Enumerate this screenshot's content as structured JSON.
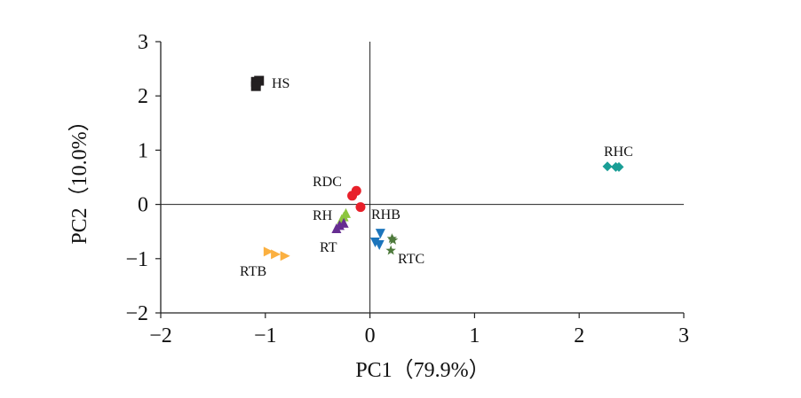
{
  "chart_data": {
    "type": "scatter",
    "title": "",
    "xlabel": "PC1（79.9%）",
    "ylabel": "PC2（10.0%）",
    "xlim": [
      -2,
      3
    ],
    "ylim": [
      -2,
      3
    ],
    "xticks": [
      "−2",
      "−1",
      "0",
      "1",
      "2",
      "3"
    ],
    "yticks": [
      "−2",
      "−1",
      "0",
      "1",
      "2",
      "3"
    ],
    "grid": false,
    "series": [
      {
        "name": "HS",
        "marker": "square",
        "color": "#231f20",
        "x": [
          -1.09,
          -1.06,
          -1.09
        ],
        "y": [
          2.26,
          2.28,
          2.18
        ]
      },
      {
        "name": "RDC",
        "marker": "circle",
        "color": "#e8202a",
        "x": [
          -0.17,
          -0.13,
          -0.09
        ],
        "y": [
          0.16,
          0.25,
          -0.05
        ]
      },
      {
        "name": "RH",
        "marker": "triangle-up",
        "color": "#8dc63f",
        "x": [
          -0.23,
          -0.25,
          -0.27
        ],
        "y": [
          -0.16,
          -0.22,
          -0.27
        ]
      },
      {
        "name": "RT",
        "marker": "triangle-purple",
        "color": "#662d91",
        "x": [
          -0.32,
          -0.29,
          -0.25
        ],
        "y": [
          -0.44,
          -0.38,
          -0.34
        ]
      },
      {
        "name": "RTB",
        "marker": "triangle-right",
        "color": "#fbb040",
        "x": [
          -0.97,
          -0.9,
          -0.81
        ],
        "y": [
          -0.87,
          -0.92,
          -0.95
        ]
      },
      {
        "name": "RHB",
        "marker": "triangle-down",
        "color": "#1c75bc",
        "x": [
          0.1,
          0.05,
          0.09
        ],
        "y": [
          -0.54,
          -0.7,
          -0.75
        ]
      },
      {
        "name": "RTC",
        "marker": "star",
        "color": "#4e7a3c",
        "x": [
          0.21,
          0.22,
          0.2
        ],
        "y": [
          -0.63,
          -0.66,
          -0.85
        ]
      },
      {
        "name": "RHC",
        "marker": "diamond",
        "color": "#1a9e96",
        "x": [
          2.27,
          2.35,
          2.38
        ],
        "y": [
          0.7,
          0.69,
          0.69
        ]
      }
    ]
  }
}
